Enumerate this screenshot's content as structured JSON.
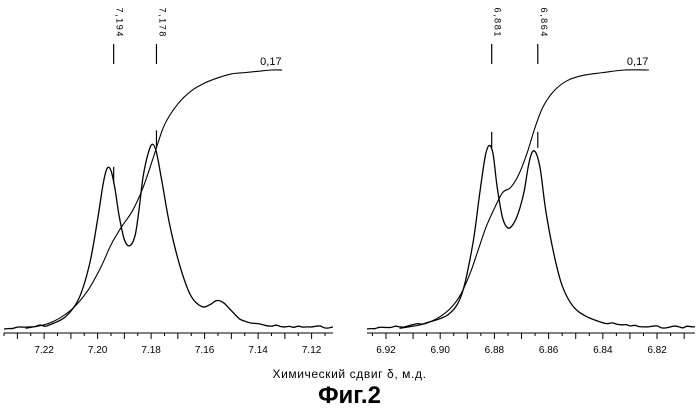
{
  "chart_data": [
    {
      "type": "line",
      "title": "",
      "xlabel": "Химический сдвиг δ, м.д.",
      "ylabel": "",
      "xlim": [
        7.235,
        7.112
      ],
      "x_reversed": true,
      "grid": false,
      "xticks": [
        7.22,
        7.2,
        7.18,
        7.16,
        7.14,
        7.12
      ],
      "xtick_labels": [
        "7.22",
        "7.20",
        "7.18",
        "7.16",
        "7.14",
        "7.12"
      ],
      "peak_labels": [
        {
          "x": 7.194,
          "text": "7,194"
        },
        {
          "x": 7.178,
          "text": "7,178"
        }
      ],
      "integral_label": "0,17",
      "series": [
        {
          "kind": "spectrum",
          "x": [
            7.235,
            7.225,
            7.218,
            7.212,
            7.207,
            7.203,
            7.2,
            7.198,
            7.1965,
            7.195,
            7.1935,
            7.192,
            7.19,
            7.188,
            7.186,
            7.1845,
            7.183,
            7.181,
            7.1795,
            7.178,
            7.176,
            7.173,
            7.169,
            7.165,
            7.161,
            7.158,
            7.1555,
            7.153,
            7.15,
            7.147,
            7.143,
            7.138,
            7.13,
            7.12,
            7.112
          ],
          "y": [
            0.01,
            0.02,
            0.03,
            0.07,
            0.16,
            0.33,
            0.55,
            0.72,
            0.8,
            0.79,
            0.7,
            0.57,
            0.45,
            0.42,
            0.47,
            0.6,
            0.76,
            0.88,
            0.92,
            0.88,
            0.74,
            0.52,
            0.31,
            0.17,
            0.12,
            0.13,
            0.15,
            0.14,
            0.1,
            0.06,
            0.04,
            0.03,
            0.02,
            0.02,
            0.02
          ]
        },
        {
          "kind": "integral",
          "x": [
            7.227,
            7.218,
            7.21,
            7.204,
            7.199,
            7.195,
            7.191,
            7.187,
            7.183,
            7.179,
            7.175,
            7.17,
            7.165,
            7.16,
            7.155,
            7.15,
            7.145,
            7.14,
            7.135,
            7.131
          ],
          "y": [
            0.01,
            0.03,
            0.08,
            0.15,
            0.24,
            0.33,
            0.4,
            0.46,
            0.55,
            0.67,
            0.79,
            0.87,
            0.92,
            0.95,
            0.97,
            0.985,
            0.99,
            0.995,
            1.0,
            1.0
          ]
        }
      ]
    },
    {
      "type": "line",
      "title": "",
      "xlabel": "Химический сдвиг δ, м.д.",
      "ylabel": "",
      "xlim": [
        6.927,
        6.806
      ],
      "x_reversed": true,
      "grid": false,
      "xticks": [
        6.92,
        6.9,
        6.88,
        6.86,
        6.84,
        6.82
      ],
      "xtick_labels": [
        "6.92",
        "6.90",
        "6.88",
        "6.86",
        "6.84",
        "6.82"
      ],
      "peak_labels": [
        {
          "x": 6.881,
          "text": "6,881"
        },
        {
          "x": 6.864,
          "text": "6,864"
        }
      ],
      "integral_label": "0,17",
      "series": [
        {
          "kind": "spectrum",
          "x": [
            6.927,
            6.915,
            6.905,
            6.897,
            6.892,
            6.888,
            6.8855,
            6.8835,
            6.882,
            6.8805,
            6.879,
            6.877,
            6.875,
            6.873,
            6.871,
            6.869,
            6.8675,
            6.866,
            6.8645,
            6.863,
            6.861,
            6.858,
            6.855,
            6.851,
            6.846,
            6.84,
            6.833,
            6.825,
            6.815,
            6.806
          ],
          "y": [
            0.01,
            0.02,
            0.04,
            0.08,
            0.18,
            0.42,
            0.66,
            0.84,
            0.9,
            0.86,
            0.7,
            0.55,
            0.5,
            0.52,
            0.58,
            0.68,
            0.8,
            0.87,
            0.86,
            0.78,
            0.58,
            0.37,
            0.22,
            0.12,
            0.07,
            0.04,
            0.03,
            0.02,
            0.02,
            0.02
          ]
        },
        {
          "kind": "integral",
          "x": [
            6.915,
            6.905,
            6.898,
            6.893,
            6.889,
            6.886,
            6.883,
            6.88,
            6.877,
            6.874,
            6.871,
            6.868,
            6.865,
            6.862,
            6.858,
            6.853,
            6.847,
            6.84,
            6.832,
            6.823
          ],
          "y": [
            0.01,
            0.03,
            0.07,
            0.13,
            0.22,
            0.31,
            0.4,
            0.47,
            0.53,
            0.55,
            0.6,
            0.68,
            0.78,
            0.86,
            0.92,
            0.96,
            0.98,
            0.99,
            1.0,
            1.0
          ]
        }
      ]
    }
  ],
  "xlabel": "Химический сдвиг δ, м.д.",
  "caption": "Фиг.2",
  "colors": {
    "line": "#000000",
    "background": "#ffffff"
  }
}
